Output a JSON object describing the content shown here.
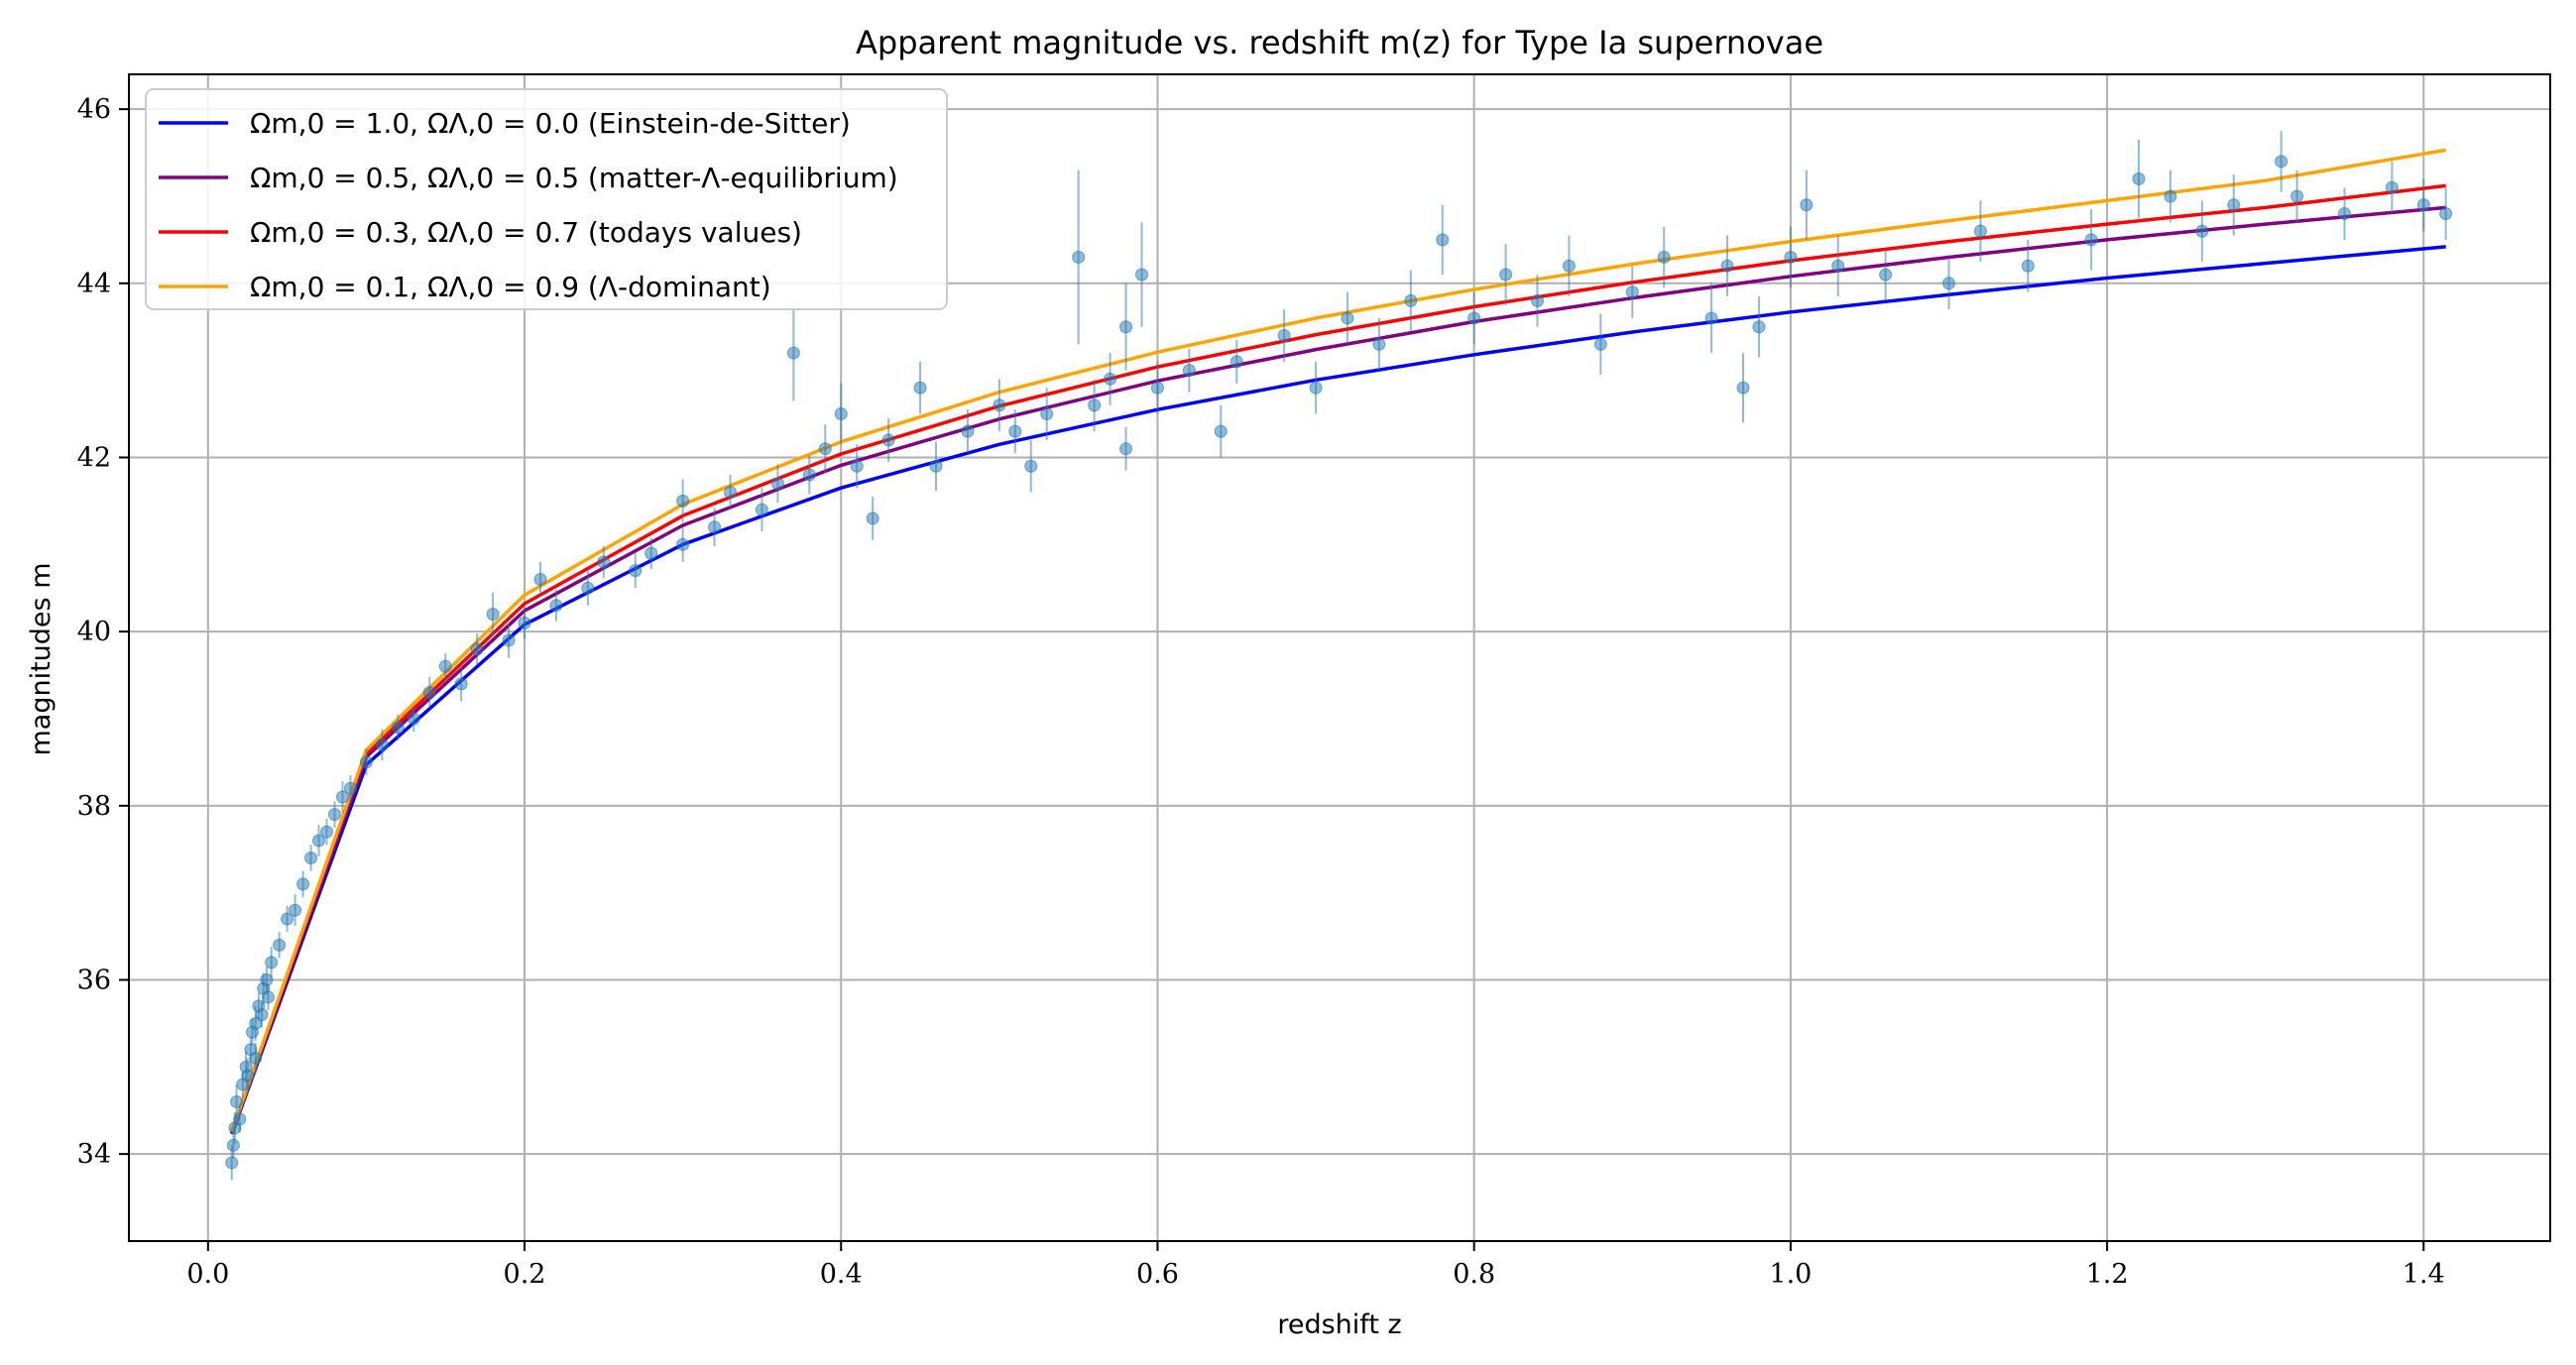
{
  "chart_data": {
    "type": "scatter",
    "title": "Apparent magnitude vs. redshift m(z) for Type Ia supernovae",
    "xlabel": "redshift z",
    "ylabel": "magnitudes m",
    "xlim": [
      -0.05,
      1.48
    ],
    "ylim": [
      33.0,
      46.4
    ],
    "xticks": [
      "0.0",
      "0.2",
      "0.4",
      "0.6",
      "0.8",
      "1.0",
      "1.2",
      "1.4"
    ],
    "yticks": [
      "34",
      "36",
      "38",
      "40",
      "42",
      "44",
      "46"
    ],
    "grid": true,
    "legend_position": "top-left",
    "series": [
      {
        "name": "Ωm,0 = 1.0, ΩΛ,0 = 0.0 (Einstein-de-Sitter)",
        "type": "line",
        "color": "#0000ff",
        "omega_m": 1.0,
        "omega_l": 0.0,
        "x": [
          0.015,
          0.1,
          0.2,
          0.3,
          0.4,
          0.5,
          0.6,
          0.7,
          0.8,
          0.9,
          1.0,
          1.1,
          1.2,
          1.3,
          1.414
        ],
        "y": [
          34.23,
          38.47,
          40.08,
          41.0,
          41.65,
          42.15,
          42.55,
          42.89,
          43.18,
          43.44,
          43.67,
          43.87,
          44.06,
          44.23,
          44.42
        ]
      },
      {
        "name": "Ωm,0 = 0.5, ΩΛ,0 = 0.5 (matter-Λ-equilibrium)",
        "type": "line",
        "color": "#800080",
        "omega_m": 0.5,
        "omega_l": 0.5,
        "x": [
          0.015,
          0.1,
          0.2,
          0.3,
          0.4,
          0.5,
          0.6,
          0.7,
          0.8,
          0.9,
          1.0,
          1.1,
          1.2,
          1.3,
          1.414
        ],
        "y": [
          34.24,
          38.56,
          40.24,
          41.22,
          41.91,
          42.44,
          42.88,
          43.24,
          43.56,
          43.83,
          44.08,
          44.3,
          44.5,
          44.68,
          44.87
        ]
      },
      {
        "name": "Ωm,0 = 0.3, ΩΛ,0 = 0.7 (todays values)",
        "type": "line",
        "color": "#ff0000",
        "omega_m": 0.3,
        "omega_l": 0.7,
        "x": [
          0.015,
          0.1,
          0.2,
          0.3,
          0.4,
          0.5,
          0.6,
          0.7,
          0.8,
          0.9,
          1.0,
          1.1,
          1.2,
          1.3,
          1.414
        ],
        "y": [
          34.25,
          38.6,
          40.32,
          41.33,
          42.04,
          42.59,
          43.04,
          43.41,
          43.73,
          44.01,
          44.26,
          44.48,
          44.68,
          44.87,
          45.12
        ]
      },
      {
        "name": "Ωm,0 = 0.1, ΩΛ,0 = 0.9 (Λ-dominant)",
        "type": "line",
        "color": "#ffa500",
        "omega_m": 0.1,
        "omega_l": 0.9,
        "x": [
          0.015,
          0.1,
          0.2,
          0.3,
          0.4,
          0.5,
          0.6,
          0.7,
          0.8,
          0.9,
          1.0,
          1.1,
          1.2,
          1.3,
          1.414
        ],
        "y": [
          34.26,
          38.64,
          40.42,
          41.46,
          42.18,
          42.75,
          43.21,
          43.6,
          43.93,
          44.22,
          44.48,
          44.72,
          44.95,
          45.18,
          45.53
        ]
      },
      {
        "name": "",
        "type": "scatter",
        "color": "#1f77b4",
        "points": [
          [
            0.015,
            33.9,
            0.2
          ],
          [
            0.016,
            34.1,
            0.15
          ],
          [
            0.017,
            34.3,
            0.18
          ],
          [
            0.018,
            34.6,
            0.2
          ],
          [
            0.02,
            34.4,
            0.15
          ],
          [
            0.022,
            34.8,
            0.15
          ],
          [
            0.024,
            35.0,
            0.18
          ],
          [
            0.025,
            34.9,
            0.2
          ],
          [
            0.027,
            35.2,
            0.15
          ],
          [
            0.028,
            35.4,
            0.15
          ],
          [
            0.03,
            35.1,
            0.18
          ],
          [
            0.03,
            35.5,
            0.2
          ],
          [
            0.032,
            35.7,
            0.15
          ],
          [
            0.034,
            35.6,
            0.15
          ],
          [
            0.035,
            35.9,
            0.18
          ],
          [
            0.037,
            36.0,
            0.15
          ],
          [
            0.038,
            35.8,
            0.15
          ],
          [
            0.04,
            36.2,
            0.18
          ],
          [
            0.045,
            36.4,
            0.15
          ],
          [
            0.05,
            36.7,
            0.15
          ],
          [
            0.055,
            36.8,
            0.18
          ],
          [
            0.06,
            37.1,
            0.15
          ],
          [
            0.065,
            37.4,
            0.15
          ],
          [
            0.07,
            37.6,
            0.18
          ],
          [
            0.075,
            37.7,
            0.15
          ],
          [
            0.08,
            37.9,
            0.15
          ],
          [
            0.085,
            38.1,
            0.18
          ],
          [
            0.09,
            38.2,
            0.15
          ],
          [
            0.1,
            38.5,
            0.15
          ],
          [
            0.11,
            38.7,
            0.18
          ],
          [
            0.12,
            38.9,
            0.15
          ],
          [
            0.13,
            39.0,
            0.15
          ],
          [
            0.14,
            39.3,
            0.18
          ],
          [
            0.15,
            39.6,
            0.15
          ],
          [
            0.16,
            39.4,
            0.2
          ],
          [
            0.17,
            39.8,
            0.18
          ],
          [
            0.18,
            40.2,
            0.25
          ],
          [
            0.19,
            39.9,
            0.2
          ],
          [
            0.2,
            40.1,
            0.18
          ],
          [
            0.21,
            40.6,
            0.2
          ],
          [
            0.22,
            40.3,
            0.18
          ],
          [
            0.24,
            40.5,
            0.2
          ],
          [
            0.25,
            40.8,
            0.18
          ],
          [
            0.27,
            40.7,
            0.2
          ],
          [
            0.28,
            40.9,
            0.18
          ],
          [
            0.3,
            41.0,
            0.2
          ],
          [
            0.3,
            41.5,
            0.25
          ],
          [
            0.32,
            41.2,
            0.22
          ],
          [
            0.33,
            41.6,
            0.2
          ],
          [
            0.35,
            41.4,
            0.25
          ],
          [
            0.36,
            41.7,
            0.22
          ],
          [
            0.37,
            43.2,
            0.55
          ],
          [
            0.38,
            41.8,
            0.22
          ],
          [
            0.39,
            42.1,
            0.28
          ],
          [
            0.4,
            42.5,
            0.35
          ],
          [
            0.41,
            41.9,
            0.25
          ],
          [
            0.42,
            41.3,
            0.25
          ],
          [
            0.43,
            42.2,
            0.25
          ],
          [
            0.45,
            42.8,
            0.3
          ],
          [
            0.46,
            41.9,
            0.28
          ],
          [
            0.48,
            42.3,
            0.25
          ],
          [
            0.5,
            42.6,
            0.3
          ],
          [
            0.51,
            42.3,
            0.25
          ],
          [
            0.52,
            41.9,
            0.3
          ],
          [
            0.53,
            42.5,
            0.3
          ],
          [
            0.55,
            44.3,
            1.0
          ],
          [
            0.56,
            42.6,
            0.3
          ],
          [
            0.57,
            42.9,
            0.3
          ],
          [
            0.58,
            43.5,
            0.5
          ],
          [
            0.58,
            42.1,
            0.25
          ],
          [
            0.59,
            44.1,
            0.6
          ],
          [
            0.6,
            42.8,
            0.3
          ],
          [
            0.62,
            43.0,
            0.25
          ],
          [
            0.64,
            42.3,
            0.3
          ],
          [
            0.65,
            43.1,
            0.25
          ],
          [
            0.68,
            43.4,
            0.3
          ],
          [
            0.7,
            42.8,
            0.3
          ],
          [
            0.72,
            43.6,
            0.3
          ],
          [
            0.74,
            43.3,
            0.3
          ],
          [
            0.76,
            43.8,
            0.35
          ],
          [
            0.78,
            44.5,
            0.4
          ],
          [
            0.8,
            43.6,
            0.3
          ],
          [
            0.82,
            44.1,
            0.35
          ],
          [
            0.84,
            43.8,
            0.3
          ],
          [
            0.86,
            44.2,
            0.35
          ],
          [
            0.88,
            43.3,
            0.35
          ],
          [
            0.9,
            43.9,
            0.3
          ],
          [
            0.92,
            44.3,
            0.35
          ],
          [
            0.95,
            43.6,
            0.4
          ],
          [
            0.96,
            44.2,
            0.35
          ],
          [
            0.97,
            42.8,
            0.4
          ],
          [
            0.98,
            43.5,
            0.35
          ],
          [
            1.0,
            44.3,
            0.35
          ],
          [
            1.01,
            44.9,
            0.4
          ],
          [
            1.03,
            44.2,
            0.35
          ],
          [
            1.06,
            44.1,
            0.3
          ],
          [
            1.1,
            44.0,
            0.3
          ],
          [
            1.12,
            44.6,
            0.35
          ],
          [
            1.15,
            44.2,
            0.3
          ],
          [
            1.19,
            44.5,
            0.35
          ],
          [
            1.22,
            45.2,
            0.45
          ],
          [
            1.24,
            45.0,
            0.3
          ],
          [
            1.26,
            44.6,
            0.35
          ],
          [
            1.28,
            44.9,
            0.35
          ],
          [
            1.31,
            45.4,
            0.35
          ],
          [
            1.32,
            45.0,
            0.3
          ],
          [
            1.35,
            44.8,
            0.3
          ],
          [
            1.38,
            45.1,
            0.3
          ],
          [
            1.4,
            44.9,
            0.3
          ],
          [
            1.414,
            44.8,
            0.3
          ]
        ]
      }
    ]
  }
}
